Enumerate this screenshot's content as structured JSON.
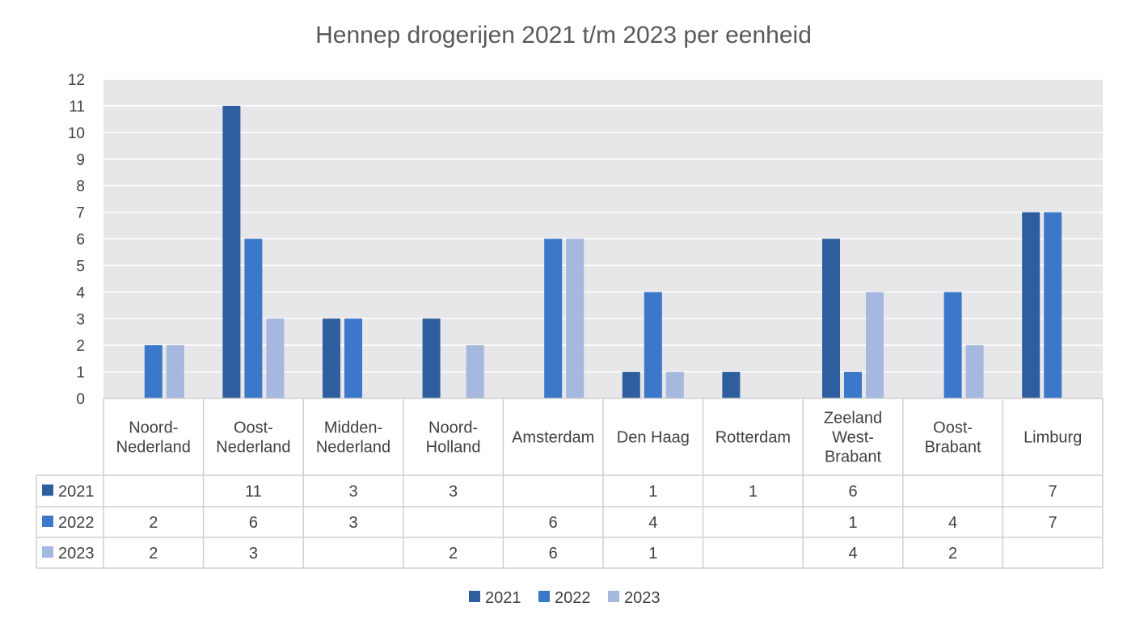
{
  "chart_data": {
    "type": "bar",
    "title": "Hennep drogerijen 2021 t/m 2023 per eenheid",
    "categories": [
      [
        "Noord-",
        "Nederland"
      ],
      [
        "Oost-",
        "Nederland"
      ],
      [
        "Midden-",
        "Nederland"
      ],
      [
        "Noord-",
        "Holland"
      ],
      [
        "Amsterdam"
      ],
      [
        "Den Haag"
      ],
      [
        "Rotterdam"
      ],
      [
        "Zeeland",
        "West-",
        "Brabant"
      ],
      [
        "Oost-",
        "Brabant"
      ],
      [
        "Limburg"
      ]
    ],
    "series": [
      {
        "name": "2021",
        "color": "#2e5e9e",
        "values": [
          null,
          11,
          3,
          3,
          null,
          1,
          1,
          6,
          null,
          7
        ]
      },
      {
        "name": "2022",
        "color": "#3b78c9",
        "values": [
          2,
          6,
          3,
          null,
          6,
          4,
          null,
          1,
          4,
          7
        ]
      },
      {
        "name": "2023",
        "color": "#a6b8de",
        "values": [
          2,
          3,
          null,
          2,
          6,
          1,
          null,
          4,
          2,
          null
        ]
      }
    ],
    "ylim": [
      0,
      12
    ],
    "yticks": [
      0,
      1,
      2,
      3,
      4,
      5,
      6,
      7,
      8,
      9,
      10,
      11,
      12
    ],
    "grid": true,
    "legend_position": "bottom",
    "data_table": true
  }
}
